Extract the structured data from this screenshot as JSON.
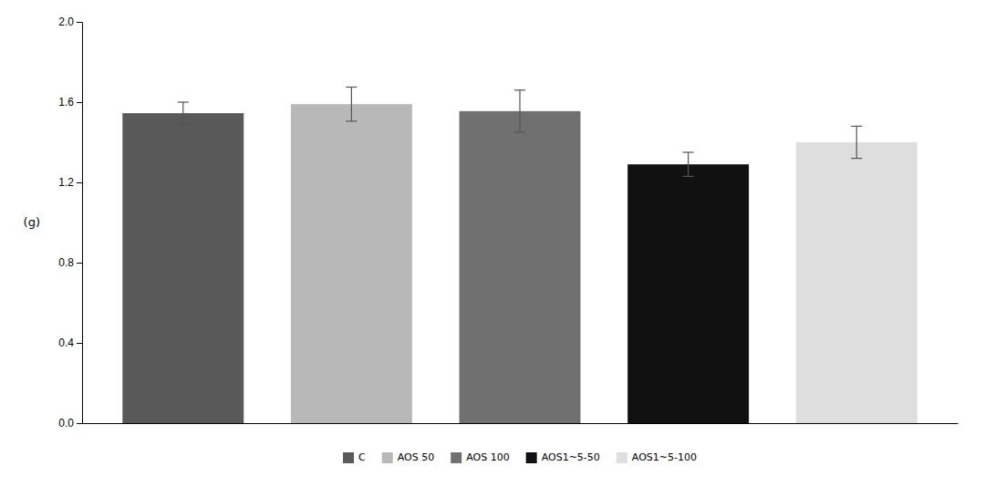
{
  "chart_data": {
    "type": "bar",
    "categories": [
      "C",
      "AOS 50",
      "AOS 100",
      "AOS1~5-50",
      "AOS1~5-100"
    ],
    "values": [
      1.545,
      1.59,
      1.555,
      1.29,
      1.4
    ],
    "errors": [
      0.055,
      0.085,
      0.105,
      0.06,
      0.08
    ],
    "colors": [
      "#595959",
      "#b8b8b8",
      "#707070",
      "#111111",
      "#dedede"
    ],
    "ylabel": "(g)",
    "ylim": [
      0.0,
      2.0
    ],
    "yticks": [
      {
        "value": 0.0,
        "label": "0.0"
      },
      0.4,
      0.8,
      1.2,
      1.6,
      {
        "value": 2.0,
        "label": "2.0"
      }
    ],
    "grid": false,
    "legend": "bottom",
    "tick_labels": "y"
  }
}
